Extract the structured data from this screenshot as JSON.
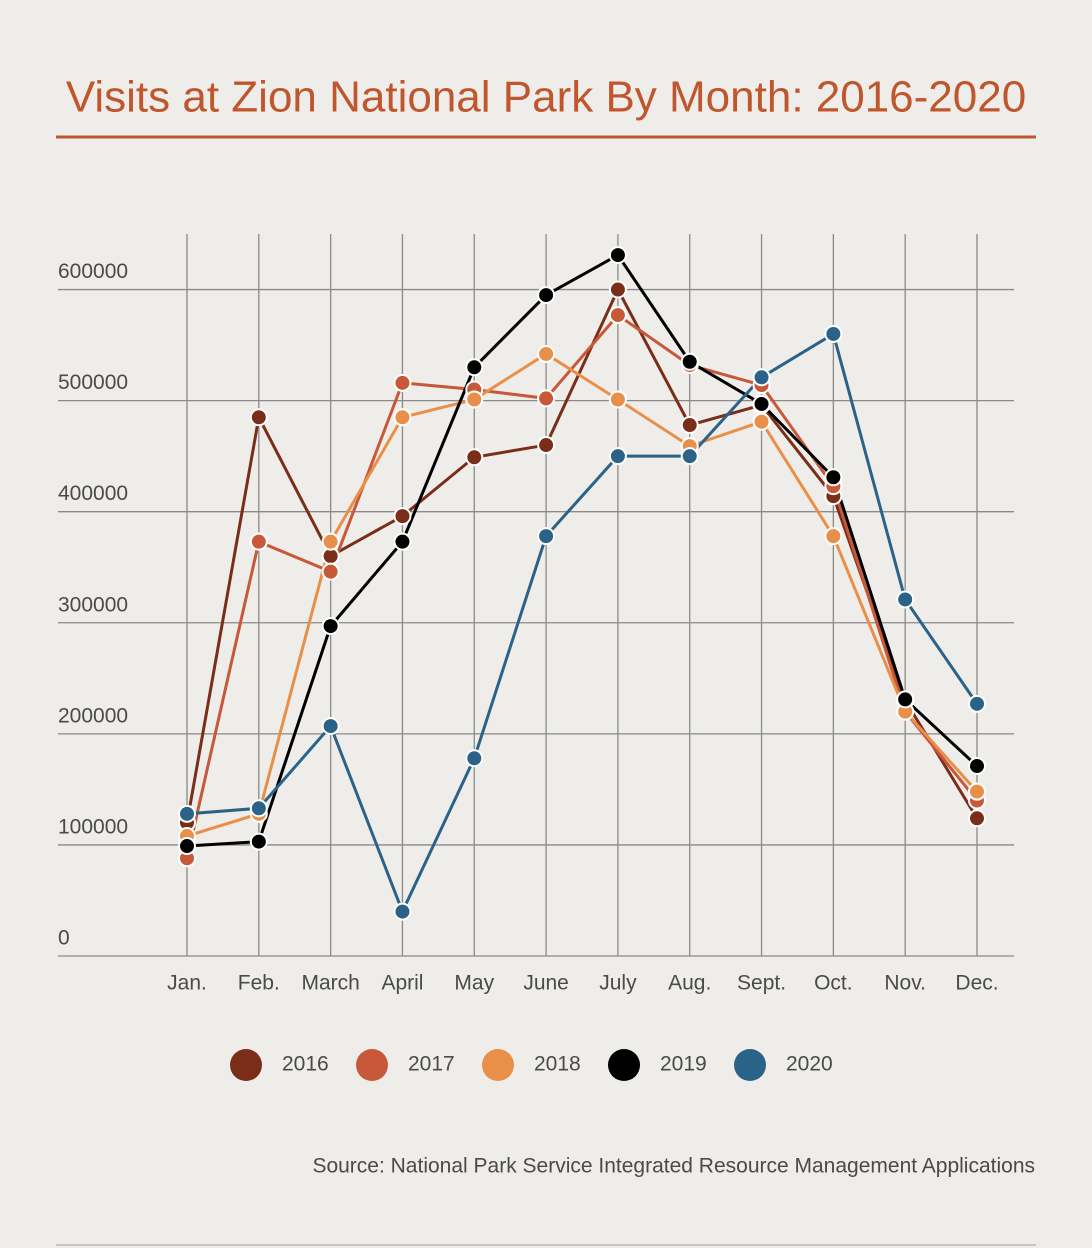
{
  "chart_data": {
    "type": "line",
    "title": "Visits at Zion National Park By Month: 2016-2020",
    "source": "Source: National Park Service Integrated Resource Management Applications",
    "categories": [
      "Jan.",
      "Feb.",
      "March",
      "April",
      "May",
      "June",
      "July",
      "Aug.",
      "Sept.",
      "Oct.",
      "Nov.",
      "Dec."
    ],
    "ylim": [
      0,
      650000
    ],
    "yticks": [
      0,
      100000,
      200000,
      300000,
      400000,
      500000,
      600000
    ],
    "grid": true,
    "legend": "bottom",
    "series": [
      {
        "name": "2016",
        "color": "#7a2e1a",
        "values": [
          120000,
          485000,
          360000,
          396000,
          449000,
          460000,
          600000,
          478000,
          496000,
          414000,
          230000,
          124000
        ]
      },
      {
        "name": "2017",
        "color": "#c8583a",
        "values": [
          88000,
          373000,
          346000,
          516000,
          510000,
          502000,
          577000,
          532000,
          514000,
          423000,
          220000,
          140000
        ]
      },
      {
        "name": "2018",
        "color": "#e8904a",
        "values": [
          108000,
          128000,
          373000,
          485000,
          501000,
          542000,
          501000,
          459000,
          481000,
          378000,
          220000,
          148000
        ]
      },
      {
        "name": "2019",
        "color": "#000000",
        "values": [
          99000,
          103000,
          297000,
          373000,
          530000,
          595000,
          631000,
          535000,
          497000,
          431000,
          231000,
          171000
        ]
      },
      {
        "name": "2020",
        "color": "#2b6388",
        "values": [
          128000,
          133000,
          207000,
          40000,
          178000,
          378000,
          450000,
          450000,
          521000,
          560000,
          321000,
          227000
        ]
      }
    ]
  }
}
